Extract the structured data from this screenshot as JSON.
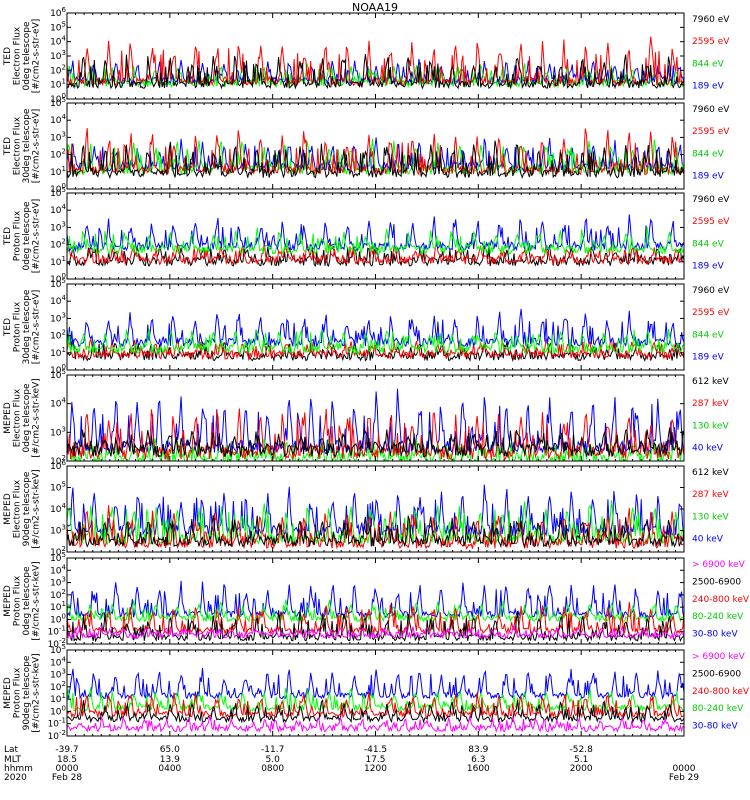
{
  "title": "NOAA19",
  "colors": {
    "black": "#000000",
    "red": "#ff0000",
    "green": "#00ff00",
    "green_label": "#00cc00",
    "blue": "#0000ff",
    "magenta": "#ff00ff"
  },
  "chart_data": [
    {
      "type": "line",
      "ylabel_lines": [
        "TED",
        "Electron Flux",
        "0deg telescope",
        "[#/cm2-s-str-eV]"
      ],
      "ytick_labels": [
        "10^0",
        "10^1",
        "10^2",
        "10^3",
        "10^4",
        "10^5",
        "10^6"
      ],
      "ylim_log10": [
        0,
        6
      ],
      "legend": [
        {
          "text": "7960 eV",
          "color": "#000000"
        },
        {
          "text": "2595 eV",
          "color": "#ff0000"
        },
        {
          "text": "844 eV",
          "color": "#00cc00"
        },
        {
          "text": "189 eV",
          "color": "#0000ff"
        }
      ],
      "series": [
        {
          "name": "189 eV",
          "color": "#0000ff",
          "base_log10": 1.3,
          "spike_log10": 2.7
        },
        {
          "name": "844 eV",
          "color": "#00ff00",
          "base_log10": 1.1,
          "spike_log10": 2.5
        },
        {
          "name": "2595 eV",
          "color": "#ff0000",
          "base_log10": 1.2,
          "spike_log10": 4.3
        },
        {
          "name": "7960 eV",
          "color": "#000000",
          "base_log10": 1.0,
          "spike_log10": 3.2
        }
      ]
    },
    {
      "type": "line",
      "ylabel_lines": [
        "TED",
        "Electron Flux",
        "30deg telescope",
        "[#/cm2-s-str-eV]"
      ],
      "ytick_labels": [
        "10^0",
        "10^1",
        "10^2",
        "10^3",
        "10^4",
        "10^5"
      ],
      "ylim_log10": [
        0,
        5
      ],
      "legend": [
        {
          "text": "7960 eV",
          "color": "#000000"
        },
        {
          "text": "2595 eV",
          "color": "#ff0000"
        },
        {
          "text": "844 eV",
          "color": "#00cc00"
        },
        {
          "text": "189 eV",
          "color": "#0000ff"
        }
      ],
      "series": [
        {
          "name": "189 eV",
          "color": "#0000ff",
          "base_log10": 1.3,
          "spike_log10": 2.8
        },
        {
          "name": "844 eV",
          "color": "#00ff00",
          "base_log10": 1.1,
          "spike_log10": 2.9
        },
        {
          "name": "2595 eV",
          "color": "#ff0000",
          "base_log10": 1.1,
          "spike_log10": 3.6
        },
        {
          "name": "7960 eV",
          "color": "#000000",
          "base_log10": 0.9,
          "spike_log10": 2.8
        }
      ]
    },
    {
      "type": "line",
      "ylabel_lines": [
        "TED",
        "Proton Flux",
        "0deg telescope",
        "[#/cm2-s-str-eV]"
      ],
      "ytick_labels": [
        "10^0",
        "10^1",
        "10^2",
        "10^3",
        "10^4",
        "10^5"
      ],
      "ylim_log10": [
        0,
        5
      ],
      "legend": [
        {
          "text": "7960 eV",
          "color": "#000000"
        },
        {
          "text": "2595 eV",
          "color": "#ff0000"
        },
        {
          "text": "844 eV",
          "color": "#00cc00"
        },
        {
          "text": "189 eV",
          "color": "#0000ff"
        }
      ],
      "series": [
        {
          "name": "7960 eV",
          "color": "#000000",
          "base_log10": 1.0,
          "spike_log10": 2.0
        },
        {
          "name": "2595 eV",
          "color": "#ff0000",
          "base_log10": 1.1,
          "spike_log10": 2.0
        },
        {
          "name": "189 eV",
          "color": "#0000ff",
          "base_log10": 1.9,
          "spike_log10": 3.6
        },
        {
          "name": "844 eV",
          "color": "#00ff00",
          "base_log10": 1.7,
          "spike_log10": 2.9
        }
      ]
    },
    {
      "type": "line",
      "ylabel_lines": [
        "TED",
        "Proton Flux",
        "30deg telescope",
        "[#/cm2-s-str-eV]"
      ],
      "ytick_labels": [
        "10^0",
        "10^1",
        "10^2",
        "10^3",
        "10^4",
        "10^5"
      ],
      "ylim_log10": [
        0,
        5
      ],
      "legend": [
        {
          "text": "7960 eV",
          "color": "#000000"
        },
        {
          "text": "2595 eV",
          "color": "#ff0000"
        },
        {
          "text": "844 eV",
          "color": "#00cc00"
        },
        {
          "text": "189 eV",
          "color": "#0000ff"
        }
      ],
      "series": [
        {
          "name": "7960 eV",
          "color": "#000000",
          "base_log10": 0.8,
          "spike_log10": 1.6
        },
        {
          "name": "2595 eV",
          "color": "#ff0000",
          "base_log10": 0.9,
          "spike_log10": 1.7
        },
        {
          "name": "189 eV",
          "color": "#0000ff",
          "base_log10": 1.6,
          "spike_log10": 3.4
        },
        {
          "name": "844 eV",
          "color": "#00ff00",
          "base_log10": 1.2,
          "spike_log10": 2.5
        }
      ]
    },
    {
      "type": "line",
      "ylabel_lines": [
        "MEPED",
        "Electron Flux",
        "0deg telescope",
        "[#/cm2-s-str-keV]"
      ],
      "ytick_labels": [
        "10^2",
        "10^3",
        "10^4",
        "10^5"
      ],
      "ylim_log10": [
        2,
        5
      ],
      "legend": [
        {
          "text": "612 keV",
          "color": "#000000"
        },
        {
          "text": "287 keV",
          "color": "#ff0000"
        },
        {
          "text": "130 keV",
          "color": "#00cc00"
        },
        {
          "text": "40 keV",
          "color": "#0000ff"
        }
      ],
      "series": [
        {
          "name": "40 keV",
          "color": "#0000ff",
          "base_log10": 2.5,
          "spike_log10": 4.4
        },
        {
          "name": "130 keV",
          "color": "#00ff00",
          "base_log10": 2.1,
          "spike_log10": 2.6
        },
        {
          "name": "287 keV",
          "color": "#ff0000",
          "base_log10": 2.3,
          "spike_log10": 3.9
        },
        {
          "name": "612 keV",
          "color": "#000000",
          "base_log10": 2.4,
          "spike_log10": 3.1
        }
      ]
    },
    {
      "type": "line",
      "ylabel_lines": [
        "MEPED",
        "Electron Flux",
        "90deg telescope",
        "[#/cm2-s-str-keV]"
      ],
      "ytick_labels": [
        "10^2",
        "10^3",
        "10^4",
        "10^5",
        "10^6"
      ],
      "ylim_log10": [
        2,
        6
      ],
      "legend": [
        {
          "text": "612 keV",
          "color": "#000000"
        },
        {
          "text": "287 keV",
          "color": "#ff0000"
        },
        {
          "text": "130 keV",
          "color": "#00cc00"
        },
        {
          "text": "40 keV",
          "color": "#0000ff"
        }
      ],
      "series": [
        {
          "name": "40 keV",
          "color": "#0000ff",
          "base_log10": 3.0,
          "spike_log10": 5.0
        },
        {
          "name": "130 keV",
          "color": "#00ff00",
          "base_log10": 2.6,
          "spike_log10": 4.4
        },
        {
          "name": "287 keV",
          "color": "#ff0000",
          "base_log10": 2.4,
          "spike_log10": 4.1
        },
        {
          "name": "612 keV",
          "color": "#000000",
          "base_log10": 2.5,
          "spike_log10": 3.6
        }
      ]
    },
    {
      "type": "line",
      "ylabel_lines": [
        "MEPED",
        "Proton Flux",
        "0deg telescope",
        "[#/cm2-s-str-keV]"
      ],
      "ytick_labels": [
        "10^-2",
        "10^-1",
        "10^0",
        "10^1",
        "10^2",
        "10^3",
        "10^4",
        "10^5"
      ],
      "ylim_log10": [
        -2,
        5
      ],
      "legend": [
        {
          "text": "> 6900 keV",
          "color": "#ff00ff"
        },
        {
          "text": "2500-6900",
          "color": "#000000"
        },
        {
          "text": "240-800 keV",
          "color": "#ff0000"
        },
        {
          "text": "80-240 keV",
          "color": "#00cc00"
        },
        {
          "text": "30-80 keV",
          "color": "#0000ff"
        }
      ],
      "series": [
        {
          "name": "30-80 keV",
          "color": "#0000ff",
          "base_log10": 0.4,
          "spike_log10": 3.2
        },
        {
          "name": "80-240 keV",
          "color": "#00ff00",
          "base_log10": 0.1,
          "spike_log10": 1.5
        },
        {
          "name": "240-800 keV",
          "color": "#ff0000",
          "base_log10": -0.9,
          "spike_log10": 1.3
        },
        {
          "name": "2500-6900",
          "color": "#000000",
          "base_log10": -1.5,
          "spike_log10": 0.6
        },
        {
          "name": "> 6900 keV",
          "color": "#ff00ff",
          "base_log10": -1.3,
          "spike_log10": -0.6
        }
      ]
    },
    {
      "type": "line",
      "ylabel_lines": [
        "MEPED",
        "Proton Flux",
        "90deg telescope",
        "[#/cm2-s-str-keV]"
      ],
      "ytick_labels": [
        "10^-2",
        "10^-1",
        "10^0",
        "10^1",
        "10^2",
        "10^3",
        "10^4",
        "10^5"
      ],
      "ylim_log10": [
        -2,
        5
      ],
      "legend": [
        {
          "text": "> 6900 keV",
          "color": "#ff00ff"
        },
        {
          "text": "2500-6900",
          "color": "#000000"
        },
        {
          "text": "240-800 keV",
          "color": "#ff0000"
        },
        {
          "text": "80-240 keV",
          "color": "#00cc00"
        },
        {
          "text": "30-80 keV",
          "color": "#0000ff"
        }
      ],
      "series": [
        {
          "name": "30-80 keV",
          "color": "#0000ff",
          "base_log10": 1.3,
          "spike_log10": 3.6
        },
        {
          "name": "80-240 keV",
          "color": "#00ff00",
          "base_log10": 0.3,
          "spike_log10": 1.9
        },
        {
          "name": "240-800 keV",
          "color": "#ff0000",
          "base_log10": -0.2,
          "spike_log10": 1.6
        },
        {
          "name": "2500-6900",
          "color": "#000000",
          "base_log10": -0.6,
          "spike_log10": 0.8
        },
        {
          "name": "> 6900 keV",
          "color": "#ff00ff",
          "base_log10": -1.4,
          "spike_log10": -0.5
        }
      ]
    }
  ],
  "x_axis": {
    "row_labels": [
      "Lat",
      "MLT",
      "hhmm",
      "2020"
    ],
    "ticks": [
      {
        "lat": "-39.7",
        "mlt": "18.5",
        "hhmm": "0000",
        "date": "Feb 28"
      },
      {
        "lat": "65.0",
        "mlt": "13.9",
        "hhmm": "0400",
        "date": ""
      },
      {
        "lat": "-11.7",
        "mlt": "5.0",
        "hhmm": "0800",
        "date": ""
      },
      {
        "lat": "-41.5",
        "mlt": "17.5",
        "hhmm": "1200",
        "date": ""
      },
      {
        "lat": "83.9",
        "mlt": "6.3",
        "hhmm": "1600",
        "date": ""
      },
      {
        "lat": "-52.8",
        "mlt": "5.1",
        "hhmm": "2000",
        "date": ""
      },
      {
        "lat": "",
        "mlt": "",
        "hhmm": "0000",
        "date": "Feb 29"
      }
    ]
  }
}
